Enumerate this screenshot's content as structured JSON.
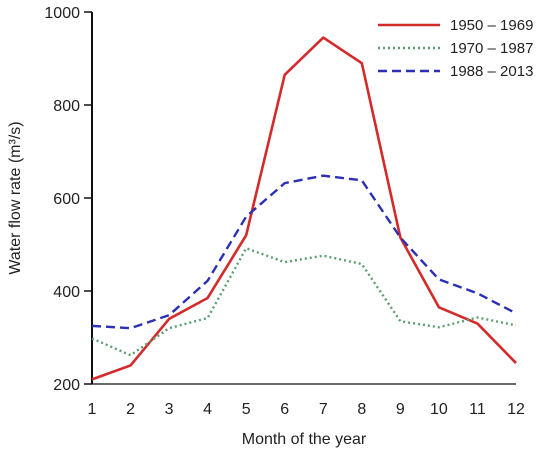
{
  "chart_data": {
    "type": "line",
    "xlabel": "Month of the year",
    "ylabel": "Water flow rate (m³/s)",
    "x": [
      1,
      2,
      3,
      4,
      5,
      6,
      7,
      8,
      9,
      10,
      11,
      12
    ],
    "ylim": [
      200,
      1000
    ],
    "yticks": [
      200,
      400,
      600,
      800,
      1000
    ],
    "grid": false,
    "legend_position": "top-right",
    "series": [
      {
        "name": "1950 – 1969",
        "color": "#d42a2a",
        "style": "solid",
        "values": [
          210,
          240,
          340,
          385,
          520,
          865,
          945,
          890,
          515,
          365,
          330,
          245
        ]
      },
      {
        "name": "1970 – 1987",
        "color": "#5a9e6f",
        "style": "dotted",
        "values": [
          298,
          262,
          320,
          342,
          492,
          462,
          476,
          458,
          335,
          322,
          343,
          326
        ]
      },
      {
        "name": "1988 – 2013",
        "color": "#2b2fb4",
        "style": "dashed",
        "values": [
          325,
          320,
          348,
          422,
          560,
          632,
          648,
          638,
          515,
          425,
          395,
          352
        ]
      }
    ]
  }
}
